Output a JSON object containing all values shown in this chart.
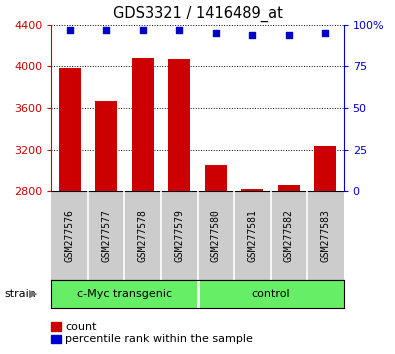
{
  "title": "GDS3321 / 1416489_at",
  "samples": [
    "GSM277576",
    "GSM277577",
    "GSM277578",
    "GSM277579",
    "GSM277580",
    "GSM277581",
    "GSM277582",
    "GSM277583"
  ],
  "counts": [
    3980,
    3670,
    4080,
    4075,
    3050,
    2820,
    2860,
    3230
  ],
  "percentile_y2": [
    97,
    97,
    97,
    97,
    95,
    94,
    94,
    95
  ],
  "ylim": [
    2800,
    4400
  ],
  "yticks": [
    2800,
    3200,
    3600,
    4000,
    4400
  ],
  "y2lim": [
    0,
    100
  ],
  "y2ticks": [
    0,
    25,
    50,
    75,
    100
  ],
  "bar_color": "#cc0000",
  "dot_color": "#0000cc",
  "group1_label": "c-Myc transgenic",
  "group2_label": "control",
  "group_color": "#66ee66",
  "strain_label": "strain",
  "legend_count": "count",
  "legend_percentile": "percentile rank within the sample",
  "left_axis_color": "#cc0000",
  "right_axis_color": "#0000cc",
  "background_color": "#ffffff",
  "label_bg": "#cccccc",
  "figsize": [
    3.95,
    3.54
  ],
  "dpi": 100
}
